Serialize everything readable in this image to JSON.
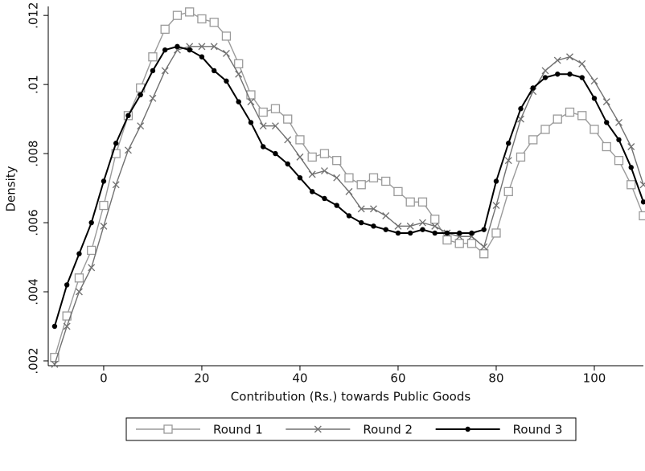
{
  "chart_data": {
    "type": "line",
    "xlabel": "Contribution (Rs.) towards Public Goods",
    "ylabel": "Density",
    "x": [
      -10,
      -7.5,
      -5,
      -2.5,
      0,
      2.5,
      5,
      7.5,
      10,
      12.5,
      15,
      17.5,
      20,
      22.5,
      25,
      27.5,
      30,
      32.5,
      35,
      37.5,
      40,
      42.5,
      45,
      47.5,
      50,
      52.5,
      55,
      57.5,
      60,
      62.5,
      65,
      67.5,
      70,
      72.5,
      75,
      77.5,
      80,
      82.5,
      85,
      87.5,
      90,
      92.5,
      95,
      97.5,
      100,
      102.5,
      105,
      107.5,
      110
    ],
    "series": [
      {
        "name": "Round 1",
        "color": "#9a9a9a",
        "marker": "square",
        "values": [
          0.0021,
          0.0033,
          0.0044,
          0.0052,
          0.0065,
          0.008,
          0.0091,
          0.0099,
          0.0108,
          0.0116,
          0.012,
          0.0121,
          0.0119,
          0.0118,
          0.0114,
          0.0106,
          0.0097,
          0.0092,
          0.0093,
          0.009,
          0.0084,
          0.0079,
          0.008,
          0.0078,
          0.0073,
          0.0071,
          0.0073,
          0.0072,
          0.0069,
          0.0066,
          0.0066,
          0.0061,
          0.0055,
          0.0054,
          0.0054,
          0.0051,
          0.0057,
          0.0069,
          0.0079,
          0.0084,
          0.0087,
          0.009,
          0.0092,
          0.0091,
          0.0087,
          0.0082,
          0.0078,
          0.0071,
          0.0062
        ]
      },
      {
        "name": "Round 2",
        "color": "#707070",
        "marker": "x",
        "values": [
          0.0019,
          0.003,
          0.004,
          0.0047,
          0.0059,
          0.0071,
          0.0081,
          0.0088,
          0.0096,
          0.0104,
          0.011,
          0.0111,
          0.0111,
          0.0111,
          0.0109,
          0.0103,
          0.0095,
          0.0088,
          0.0088,
          0.0084,
          0.0079,
          0.0074,
          0.0075,
          0.0073,
          0.0069,
          0.0064,
          0.0064,
          0.0062,
          0.0059,
          0.0059,
          0.006,
          0.0059,
          0.0057,
          0.0056,
          0.0056,
          0.0053,
          0.0065,
          0.0078,
          0.009,
          0.0098,
          0.0104,
          0.0107,
          0.0108,
          0.0106,
          0.0101,
          0.0095,
          0.0089,
          0.0082,
          0.0071
        ]
      },
      {
        "name": "Round 3",
        "color": "#000000",
        "marker": "circle",
        "values": [
          0.003,
          0.0042,
          0.0051,
          0.006,
          0.0072,
          0.0083,
          0.0091,
          0.0097,
          0.0104,
          0.011,
          0.0111,
          0.011,
          0.0108,
          0.0104,
          0.0101,
          0.0095,
          0.0089,
          0.0082,
          0.008,
          0.0077,
          0.0073,
          0.0069,
          0.0067,
          0.0065,
          0.0062,
          0.006,
          0.0059,
          0.0058,
          0.0057,
          0.0057,
          0.0058,
          0.0057,
          0.0057,
          0.0057,
          0.0057,
          0.0058,
          0.0072,
          0.0083,
          0.0093,
          0.0099,
          0.0102,
          0.0103,
          0.0103,
          0.0102,
          0.0096,
          0.0089,
          0.0084,
          0.0076,
          0.0066
        ]
      }
    ],
    "xlim": [
      -11.3,
      110
    ],
    "xticks": [
      0,
      20,
      40,
      60,
      80,
      100
    ],
    "ylim": [
      0.00186,
      0.01226
    ],
    "yticks": [
      {
        "value": 0.002,
        "label": ".002"
      },
      {
        "value": 0.004,
        "label": ".004"
      },
      {
        "value": 0.006,
        "label": ".006"
      },
      {
        "value": 0.008,
        "label": ".008"
      },
      {
        "value": 0.01,
        "label": ".01"
      },
      {
        "value": 0.012,
        "label": ".012"
      }
    ],
    "legend": "bottom"
  }
}
